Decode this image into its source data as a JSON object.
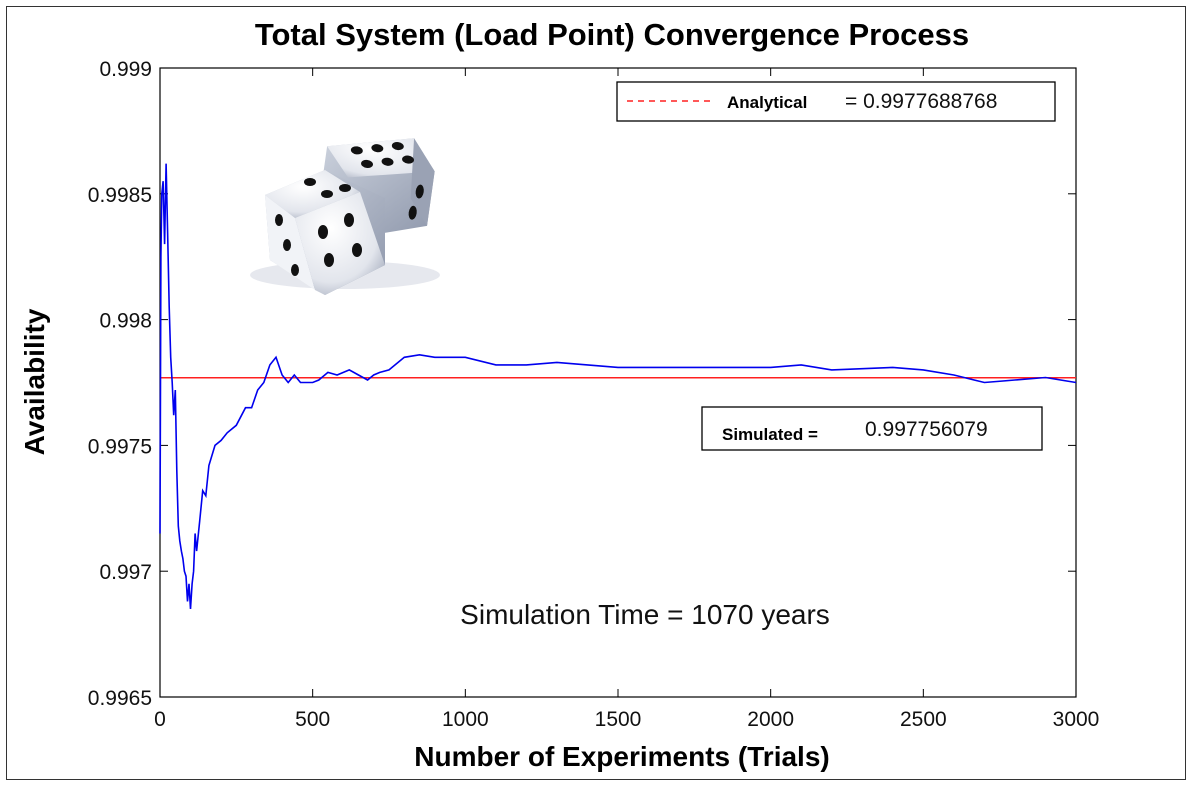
{
  "chart_data": {
    "type": "line",
    "title": "Total System (Load Point) Convergence Process",
    "xlabel": "Number of Experiments (Trials)",
    "ylabel": "Availability",
    "xlim": [
      0,
      3000
    ],
    "ylim": [
      0.9965,
      0.999
    ],
    "x_ticks": [
      "0",
      "500",
      "1000",
      "1500",
      "2000",
      "2500",
      "3000"
    ],
    "y_ticks": [
      "0.9965",
      "0.997",
      "0.9975",
      "0.998",
      "0.9985",
      "0.999"
    ],
    "grid": false,
    "colors": {
      "simulated": "#0000ee",
      "analytical": "#ff2020"
    },
    "legend": {
      "analytical_label": "Analytical",
      "analytical_value": "= 0.9977688768",
      "simulated_label": "Simulated =",
      "simulated_value": "0.997756079"
    },
    "annotation": "Simulation Time = 1070 years",
    "image_icon": "dice-icon",
    "series": [
      {
        "name": "Simulated",
        "x": [
          0,
          3,
          6,
          10,
          15,
          20,
          25,
          30,
          35,
          40,
          45,
          50,
          55,
          60,
          65,
          70,
          75,
          80,
          85,
          90,
          95,
          100,
          105,
          110,
          115,
          120,
          130,
          140,
          150,
          160,
          180,
          200,
          220,
          250,
          280,
          300,
          320,
          340,
          360,
          380,
          400,
          420,
          440,
          460,
          480,
          500,
          520,
          550,
          580,
          620,
          650,
          680,
          700,
          720,
          750,
          800,
          850,
          900,
          1000,
          1100,
          1200,
          1300,
          1400,
          1500,
          1600,
          1800,
          2000,
          2100,
          2200,
          2400,
          2500,
          2600,
          2700,
          2800,
          2900,
          3000
        ],
        "y": [
          0.99715,
          0.99825,
          0.9985,
          0.99855,
          0.9983,
          0.99862,
          0.99835,
          0.99805,
          0.99785,
          0.99775,
          0.99762,
          0.99772,
          0.9974,
          0.99718,
          0.99712,
          0.99708,
          0.99705,
          0.997,
          0.99698,
          0.99688,
          0.99695,
          0.99685,
          0.99695,
          0.997,
          0.99715,
          0.99708,
          0.9972,
          0.99732,
          0.9973,
          0.99742,
          0.9975,
          0.99752,
          0.99755,
          0.99758,
          0.99765,
          0.99765,
          0.99772,
          0.99775,
          0.99782,
          0.99785,
          0.99778,
          0.99775,
          0.99778,
          0.99775,
          0.99775,
          0.99775,
          0.99776,
          0.99779,
          0.99778,
          0.9978,
          0.99778,
          0.99776,
          0.99778,
          0.99779,
          0.9978,
          0.99785,
          0.99786,
          0.99785,
          0.99785,
          0.99782,
          0.99782,
          0.99783,
          0.99782,
          0.99781,
          0.99781,
          0.99781,
          0.99781,
          0.99782,
          0.9978,
          0.99781,
          0.9978,
          0.99778,
          0.99775,
          0.99776,
          0.99777,
          0.99775
        ]
      },
      {
        "name": "Analytical",
        "x": [
          0,
          3000
        ],
        "y": [
          0.9977688768,
          0.9977688768
        ]
      }
    ]
  }
}
